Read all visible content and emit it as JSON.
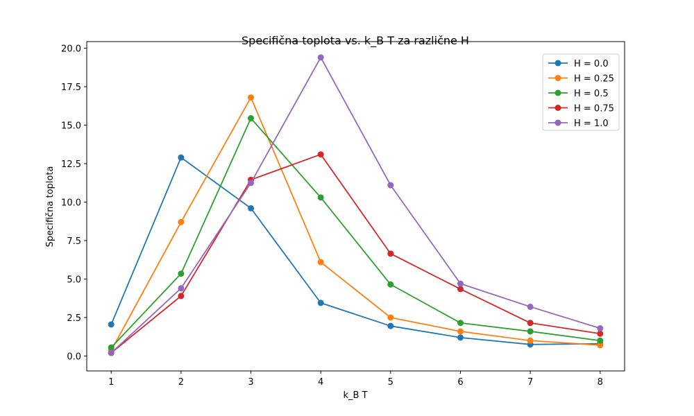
{
  "chart_data": {
    "type": "line",
    "title": "Specifična toplota vs. k_B T za različne H",
    "xlabel": "k_B T",
    "ylabel": "Specifična toplota",
    "x": [
      1,
      2,
      3,
      4,
      5,
      6,
      7,
      8
    ],
    "xlim": [
      0.65,
      8.35
    ],
    "ylim": [
      -0.97,
      20.43
    ],
    "xticks": [
      1,
      2,
      3,
      4,
      5,
      6,
      7,
      8
    ],
    "yticks": [
      0.0,
      2.5,
      5.0,
      7.5,
      10.0,
      12.5,
      15.0,
      17.5,
      20.0
    ],
    "ytick_labels": [
      "0.0",
      "2.5",
      "5.0",
      "7.5",
      "10.0",
      "12.5",
      "15.0",
      "17.5",
      "20.0"
    ],
    "grid": false,
    "legend_position": "top-right",
    "series": [
      {
        "name": "H = 0.0",
        "color": "#1f77b4",
        "values": [
          2.05,
          12.9,
          9.6,
          3.45,
          1.95,
          1.2,
          0.75,
          0.8
        ]
      },
      {
        "name": "H = 0.25",
        "color": "#ff7f0e",
        "values": [
          0.35,
          8.7,
          16.8,
          6.1,
          2.5,
          1.6,
          1.0,
          0.7
        ]
      },
      {
        "name": "H = 0.5",
        "color": "#2ca02c",
        "values": [
          0.55,
          5.35,
          15.45,
          10.3,
          4.65,
          2.15,
          1.6,
          1.0
        ]
      },
      {
        "name": "H = 0.75",
        "color": "#d62728",
        "values": [
          0.2,
          3.9,
          11.45,
          13.1,
          6.65,
          4.35,
          2.15,
          1.45
        ]
      },
      {
        "name": "H = 1.0",
        "color": "#9467bd",
        "values": [
          0.2,
          4.4,
          11.25,
          19.4,
          11.1,
          4.7,
          3.2,
          1.8
        ]
      }
    ]
  }
}
